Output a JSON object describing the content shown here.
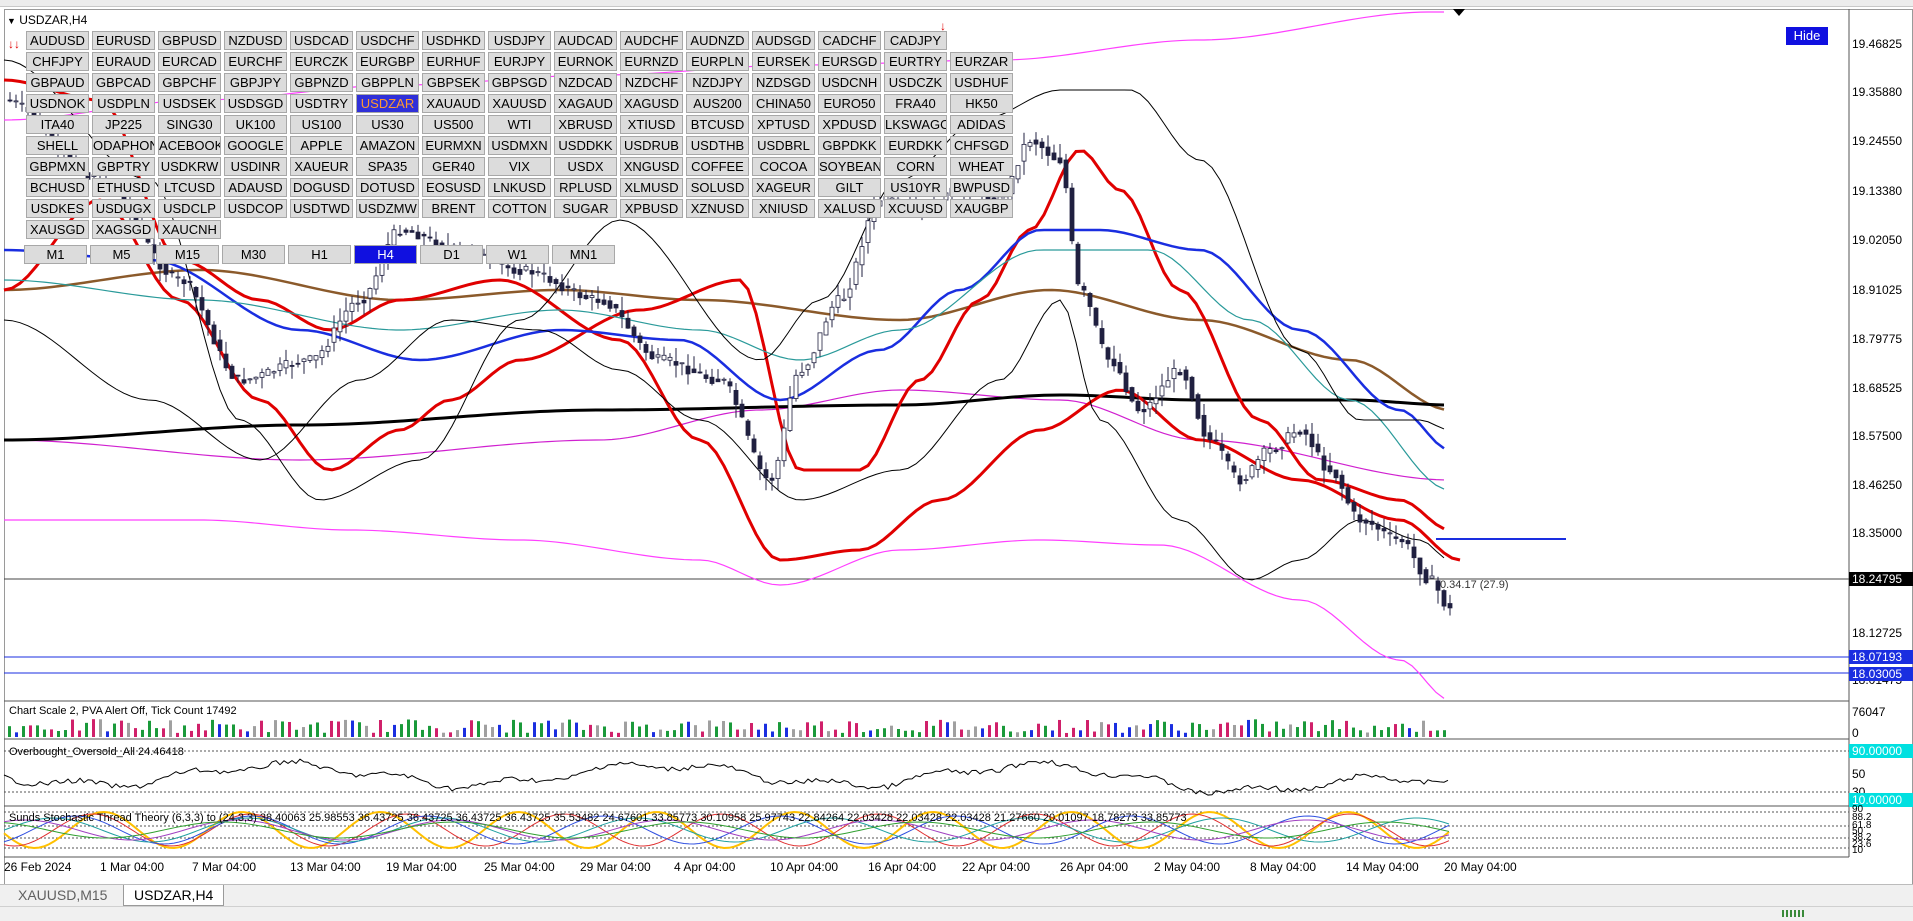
{
  "window": {
    "title": "USDZAR,H4"
  },
  "symbols": [
    [
      "AUDUSD",
      "EURUSD",
      "GBPUSD",
      "NZDUSD",
      "USDCAD",
      "USDCHF",
      "USDHKD",
      "USDJPY",
      "AUDCAD",
      "AUDCHF",
      "AUDNZD",
      "AUDSGD",
      "CADCHF",
      "CADJPY"
    ],
    [
      "CHFJPY",
      "EURAUD",
      "EURCAD",
      "EURCHF",
      "EURCZK",
      "EURGBP",
      "EURHUF",
      "EURJPY",
      "EURNOK",
      "EURNZD",
      "EURPLN",
      "EURSEK",
      "EURSGD",
      "EURTRY",
      "EURZAR"
    ],
    [
      "GBPAUD",
      "GBPCAD",
      "GBPCHF",
      "GBPJPY",
      "GBPNZD",
      "GBPPLN",
      "GBPSEK",
      "GBPSGD",
      "NZDCAD",
      "NZDCHF",
      "NZDJPY",
      "NZDSGD",
      "USDCNH",
      "USDCZK",
      "USDHUF"
    ],
    [
      "USDNOK",
      "USDPLN",
      "USDSEK",
      "USDSGD",
      "USDTRY",
      "USDZAR",
      "XAUAUD",
      "XAUUSD",
      "XAGAUD",
      "XAGUSD",
      "AUS200",
      "CHINA50",
      "EURO50",
      "FRA40",
      "HK50"
    ],
    [
      "ITA40",
      "JP225",
      "SING30",
      "UK100",
      "US100",
      "US30",
      "US500",
      "WTI",
      "XBRUSD",
      "XTIUSD",
      "BTCUSD",
      "XPTUSD",
      "XPDUSD",
      "LKSWAGO",
      "ADIDAS"
    ],
    [
      "SHELL",
      "ODAPHON",
      "ACEBOOK",
      "GOOGLE",
      "APPLE",
      "AMAZON",
      "EURMXN",
      "USDMXN",
      "USDDKK",
      "USDRUB",
      "USDTHB",
      "USDBRL",
      "GBPDKK",
      "EURDKK",
      "CHFSGD"
    ],
    [
      "GBPMXN",
      "GBPTRY",
      "USDKRW",
      "USDINR",
      "XAUEUR",
      "SPA35",
      "GER40",
      "VIX",
      "USDX",
      "XNGUSD",
      "COFFEE",
      "COCOA",
      "SOYBEANS",
      "CORN",
      "WHEAT"
    ],
    [
      "BCHUSD",
      "ETHUSD",
      "LTCUSD",
      "ADAUSD",
      "DOGUSD",
      "DOTUSD",
      "EOSUSD",
      "LNKUSD",
      "RPLUSD",
      "XLMUSD",
      "SOLUSD",
      "XAGEUR",
      "GILT",
      "US10YR",
      "BWPUSD"
    ],
    [
      "USDKES",
      "USDUGX",
      "USDCLP",
      "USDCOP",
      "USDTWD",
      "USDZMW",
      "BRENT",
      "COTTON",
      "SUGAR",
      "XPBUSD",
      "XZNUSD",
      "XNIUSD",
      "XALUSD",
      "XCUUSD",
      "XAUGBP"
    ],
    [
      "XAUSGD",
      "XAGSGD",
      "XAUCNH"
    ]
  ],
  "active_symbol": "USDZAR",
  "timeframes": [
    "M1",
    "M5",
    "M15",
    "M30",
    "H1",
    "H4",
    "D1",
    "W1",
    "MN1"
  ],
  "active_timeframe": "H4",
  "hide_button": "Hide",
  "price_axis": [
    "19.46825",
    "19.35880",
    "19.24550",
    "19.13380",
    "19.02050",
    "18.91025",
    "18.79775",
    "18.68525",
    "18.57500",
    "18.46250",
    "18.35000",
    "18.12725",
    "18.01475"
  ],
  "price_boxes": {
    "current": "18.24795",
    "line1": "18.07193",
    "line2": "18.03005"
  },
  "price_annotation": "0.34.17 (27.9)",
  "volume_panel": {
    "label": "Chart Scale  2,   PVA Alert Off,   Tick Count  17492",
    "axis_top": "76047",
    "axis_bottom": "0"
  },
  "osc_panel": {
    "label": "Overbought_Oversold_All 24.46418",
    "axis": [
      "90.00000",
      "50",
      "30",
      "10.00000"
    ]
  },
  "stoch_panel": {
    "label": "Sunds Stochastic Thread Theory (6,3,3) to (24,3,3) 38.40063 25.98553 36.43725 36.43725 36.43725 36.43725 35.53482 24.67601 33.85773 30.10958 25.97743 22.84264 22.03428 22.03428 22.03428 21.27660 20.01097 18.78273 33.85773",
    "axis": [
      "90",
      "88.2",
      "61.8",
      "50",
      "38.2",
      "23.6",
      "10"
    ]
  },
  "dates": [
    "26 Feb 2024",
    "1 Mar 04:00",
    "7 Mar 04:00",
    "13 Mar 04:00",
    "19 Mar 04:00",
    "25 Mar 04:00",
    "29 Mar 04:00",
    "4 Apr 04:00",
    "10 Apr 04:00",
    "16 Apr 04:00",
    "22 Apr 04:00",
    "26 Apr 04:00",
    "2 May 04:00",
    "8 May 04:00",
    "14 May 04:00",
    "20 May 04:00"
  ],
  "tabs": [
    {
      "label": "XAUUSD,M15",
      "active": false
    },
    {
      "label": "USDZAR,H4",
      "active": true
    }
  ],
  "colors": {
    "up_candle": "#202040",
    "ma_red": "#e00000",
    "ma_blue": "#1a2ee0",
    "ma_brown": "#8b5a2b",
    "ma_black": "#000000",
    "bands_magenta": "#ff40ff",
    "active_tf": "#1010e0"
  }
}
